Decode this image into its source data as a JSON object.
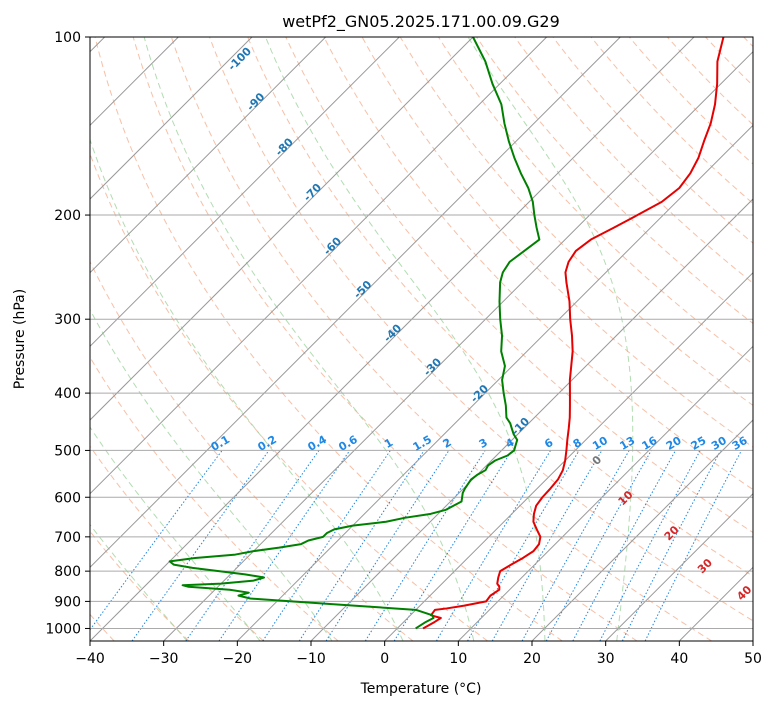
{
  "chart_data": {
    "type": "line",
    "title": "wetPf2_GN05.2025.171.00.09.G29",
    "xlabel": "Temperature (°C)",
    "ylabel": "Pressure (hPa)",
    "xlim": [
      -40,
      50
    ],
    "ylim": [
      1050,
      100
    ],
    "y_scale": "log",
    "x_ticks": [
      -40,
      -30,
      -20,
      -10,
      0,
      10,
      20,
      30,
      40,
      50
    ],
    "y_ticks": [
      100,
      200,
      300,
      400,
      500,
      600,
      700,
      800,
      900,
      1000
    ],
    "grid": true,
    "skew_degrees": 45,
    "colors": {
      "temperature": "#e60000",
      "dewpoint": "#008000",
      "isotherm": "#999999",
      "dry_adiabat": "#f4a582",
      "moist_adiabat": "#9fd39f",
      "mixing_ratio": "#1e88e5",
      "hgrid": "#aaaaaa",
      "dry_label": "#1f77b4",
      "moist_label": "#d62728",
      "mixing_label": "#1e88e5"
    },
    "series": [
      {
        "key": "temperature",
        "pressure": [
          1000,
          975,
          960,
          950,
          930,
          925,
          915,
          900,
          880,
          860,
          850,
          840,
          820,
          800,
          780,
          760,
          740,
          720,
          700,
          680,
          660,
          640,
          620,
          600,
          580,
          560,
          540,
          520,
          500,
          480,
          460,
          440,
          420,
          400,
          380,
          360,
          340,
          320,
          300,
          280,
          260,
          250,
          240,
          230,
          220,
          210,
          200,
          190,
          180,
          170,
          160,
          150,
          140,
          130,
          120,
          110,
          100
        ],
        "temperature": [
          3.5,
          4.2,
          4.5,
          2.8,
          2.6,
          4.0,
          6.0,
          8.4,
          8.2,
          8.6,
          8.2,
          7.5,
          6.8,
          6.2,
          6.8,
          7.5,
          8.0,
          7.8,
          7.0,
          5.5,
          4.0,
          3.0,
          2.2,
          1.9,
          1.8,
          1.6,
          1.0,
          0.0,
          -1.2,
          -2.5,
          -3.8,
          -5.2,
          -6.8,
          -8.5,
          -10.3,
          -12.0,
          -13.8,
          -16.0,
          -18.5,
          -21.0,
          -24.0,
          -25.5,
          -26.5,
          -27.0,
          -26.5,
          -25.0,
          -23.5,
          -22.0,
          -21.5,
          -22.0,
          -23.0,
          -24.5,
          -26.0,
          -28.0,
          -30.5,
          -33.5,
          -36.0
        ]
      },
      {
        "key": "dewpoint",
        "pressure": [
          1000,
          975,
          960,
          950,
          930,
          925,
          915,
          900,
          890,
          880,
          870,
          860,
          850,
          845,
          840,
          830,
          820,
          810,
          800,
          790,
          780,
          770,
          760,
          750,
          740,
          730,
          720,
          710,
          700,
          690,
          680,
          670,
          660,
          650,
          640,
          630,
          620,
          610,
          600,
          590,
          580,
          570,
          560,
          550,
          540,
          530,
          520,
          510,
          500,
          490,
          480,
          470,
          460,
          450,
          440,
          420,
          400,
          380,
          360,
          340,
          320,
          300,
          280,
          260,
          250,
          240,
          230,
          220,
          210,
          200,
          190,
          180,
          170,
          160,
          150,
          140,
          130,
          120,
          110,
          100
        ],
        "temperature": [
          2.5,
          3.0,
          3.5,
          3.0,
          0.0,
          -3.0,
          -9.0,
          -18.0,
          -24.0,
          -26.0,
          -25.0,
          -28.0,
          -34.0,
          -35.0,
          -30.0,
          -26.0,
          -25.0,
          -28.0,
          -32.0,
          -36.0,
          -39.0,
          -40.0,
          -37.0,
          -32.0,
          -30.0,
          -27.0,
          -24.5,
          -24.0,
          -22.5,
          -22.5,
          -22.0,
          -20.0,
          -16.0,
          -14.0,
          -11.0,
          -9.5,
          -9.0,
          -8.5,
          -9.0,
          -9.5,
          -9.8,
          -10.0,
          -10.2,
          -10.0,
          -9.5,
          -9.8,
          -9.5,
          -8.5,
          -8.3,
          -8.8,
          -9.3,
          -10.5,
          -11.5,
          -12.5,
          -13.8,
          -15.5,
          -17.5,
          -19.5,
          -21.0,
          -23.5,
          -25.5,
          -28.0,
          -30.5,
          -33.0,
          -34.0,
          -34.5,
          -34.0,
          -33.5,
          -35.5,
          -37.5,
          -39.5,
          -42.0,
          -45.0,
          -48.0,
          -51.0,
          -54.0,
          -57.0,
          -61.0,
          -65.0,
          -70.0
        ]
      }
    ],
    "dry_adiabats_c": [
      -40,
      -30,
      -20,
      -10,
      0,
      10,
      20,
      30,
      40,
      50,
      60,
      70,
      80,
      90,
      100,
      110,
      120,
      130,
      140,
      150,
      160,
      170,
      180,
      190,
      200
    ],
    "moist_adiabats_c": [
      -30,
      -20,
      -10,
      0,
      10,
      20,
      30
    ],
    "mixing_ratios_gkg": [
      0.1,
      0.2,
      0.4,
      0.6,
      1,
      1.5,
      2,
      3,
      4,
      6,
      8,
      10,
      13,
      16,
      20,
      25,
      30,
      36
    ],
    "dry_labels": [
      "-100",
      "-90",
      "-80",
      "-70",
      "-60",
      "-50",
      "-40",
      "-30",
      "-20",
      "-10"
    ],
    "moist_labels": [
      "0",
      "10",
      "20",
      "30",
      "40"
    ],
    "mixing_labels": [
      "0.1",
      "0.2",
      "0.4",
      "0.6",
      "1",
      "1.5",
      "2",
      "3",
      "4",
      "6",
      "8",
      "10",
      "13",
      "16",
      "20",
      "25",
      "30",
      "36"
    ]
  }
}
